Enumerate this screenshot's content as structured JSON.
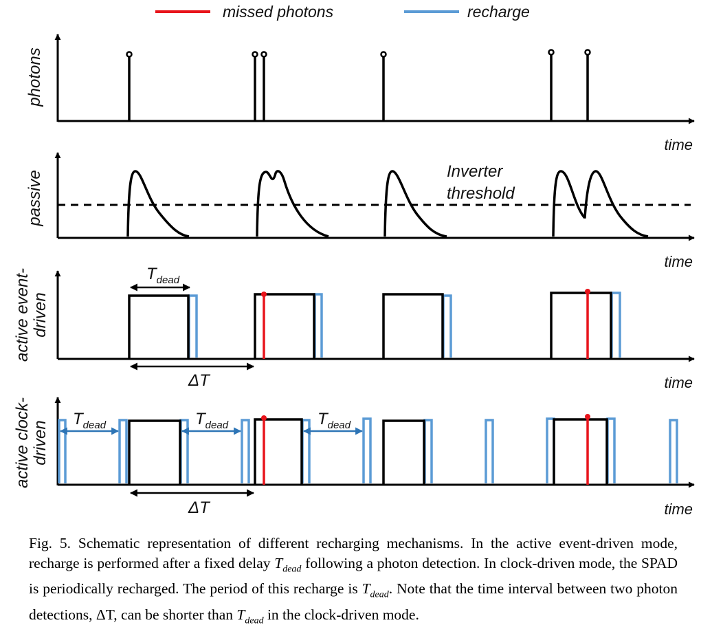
{
  "legend": {
    "missed_label": "missed photons",
    "recharge_label": "recharge",
    "missed_color": "#e8141b",
    "recharge_color": "#5b9bd5"
  },
  "panels": {
    "photons": {
      "ylabel": "photons",
      "xlabel": "time"
    },
    "passive": {
      "ylabel": "passive",
      "xlabel": "time",
      "threshold_line1": "Inverter",
      "threshold_line2": "threshold"
    },
    "event": {
      "ylabel_line1": "active event-",
      "ylabel_line2": "driven",
      "xlabel": "time"
    },
    "clock": {
      "ylabel_line1": "active clock-",
      "ylabel_line2": "driven",
      "xlabel": "time"
    }
  },
  "annotations": {
    "t_main": "T",
    "t_sub": "dead",
    "delta_t": "ΔT"
  },
  "caption": {
    "p1": "Fig. 5. Schematic representation of different recharging mechanisms. In the active event-driven mode, recharge is performed after a fixed delay ",
    "t1": "T",
    "s1": "dead",
    "p2": " following a photon detection. In clock-driven mode, the SPAD is periodically recharged. The period of this recharge is ",
    "t2": "T",
    "s2": "dead",
    "p3": ". Note that the time interval between two photon detections, ΔT, can be shorter than ",
    "t3": "T",
    "s3": "dead",
    "p4": " in the clock-driven mode."
  }
}
